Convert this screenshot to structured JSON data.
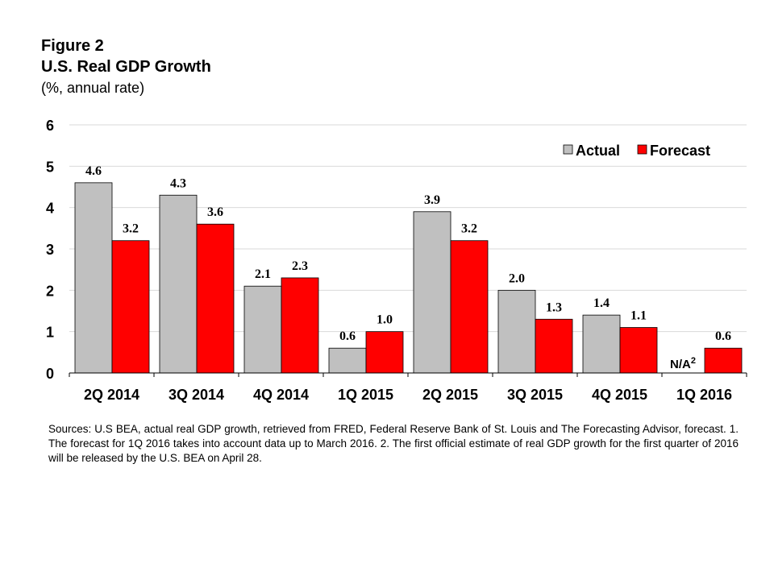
{
  "figure": {
    "label": "Figure 2",
    "title": "U.S. Real GDP Growth",
    "subtitle": "(%, annual rate)"
  },
  "chart_data": {
    "type": "bar",
    "title": "U.S. Real GDP Growth",
    "subtitle": "(%, annual rate)",
    "xlabel": "",
    "ylabel": "",
    "categories": [
      "2Q 2014",
      "3Q 2014",
      "4Q 2014",
      "1Q 2015",
      "2Q 2015",
      "3Q 2015",
      "4Q 2015",
      "1Q 2016"
    ],
    "series": [
      {
        "name": "Actual",
        "color": "#C0C0C0",
        "values": [
          4.6,
          4.3,
          2.1,
          0.6,
          3.9,
          2.0,
          1.4,
          null
        ],
        "labels": [
          "4.6",
          "4.3",
          "2.1",
          "0.6",
          "3.9",
          "2.0",
          "1.4",
          "N/A"
        ]
      },
      {
        "name": "Forecast",
        "color": "#FF0000",
        "values": [
          3.2,
          3.6,
          2.3,
          1.0,
          3.2,
          1.3,
          1.1,
          0.6
        ],
        "labels": [
          "3.2",
          "3.6",
          "2.3",
          "1.0",
          "3.2",
          "1.3",
          "1.1",
          "0.6"
        ]
      }
    ],
    "na_superscript": "2",
    "ylim": [
      0,
      6
    ],
    "yticks": [
      0,
      1,
      2,
      3,
      4,
      5,
      6
    ],
    "grid": true,
    "legend": "top-right"
  },
  "footnote": "Sources: U.S BEA, actual real GDP growth, retrieved from FRED, Federal Reserve Bank of St. Louis and The Forecasting Advisor, forecast. 1. The forecast for 1Q 2016 takes into account data up to March 2016. 2. The first official estimate of real GDP growth for the first quarter of 2016 will be released by the U.S. BEA on April 28."
}
